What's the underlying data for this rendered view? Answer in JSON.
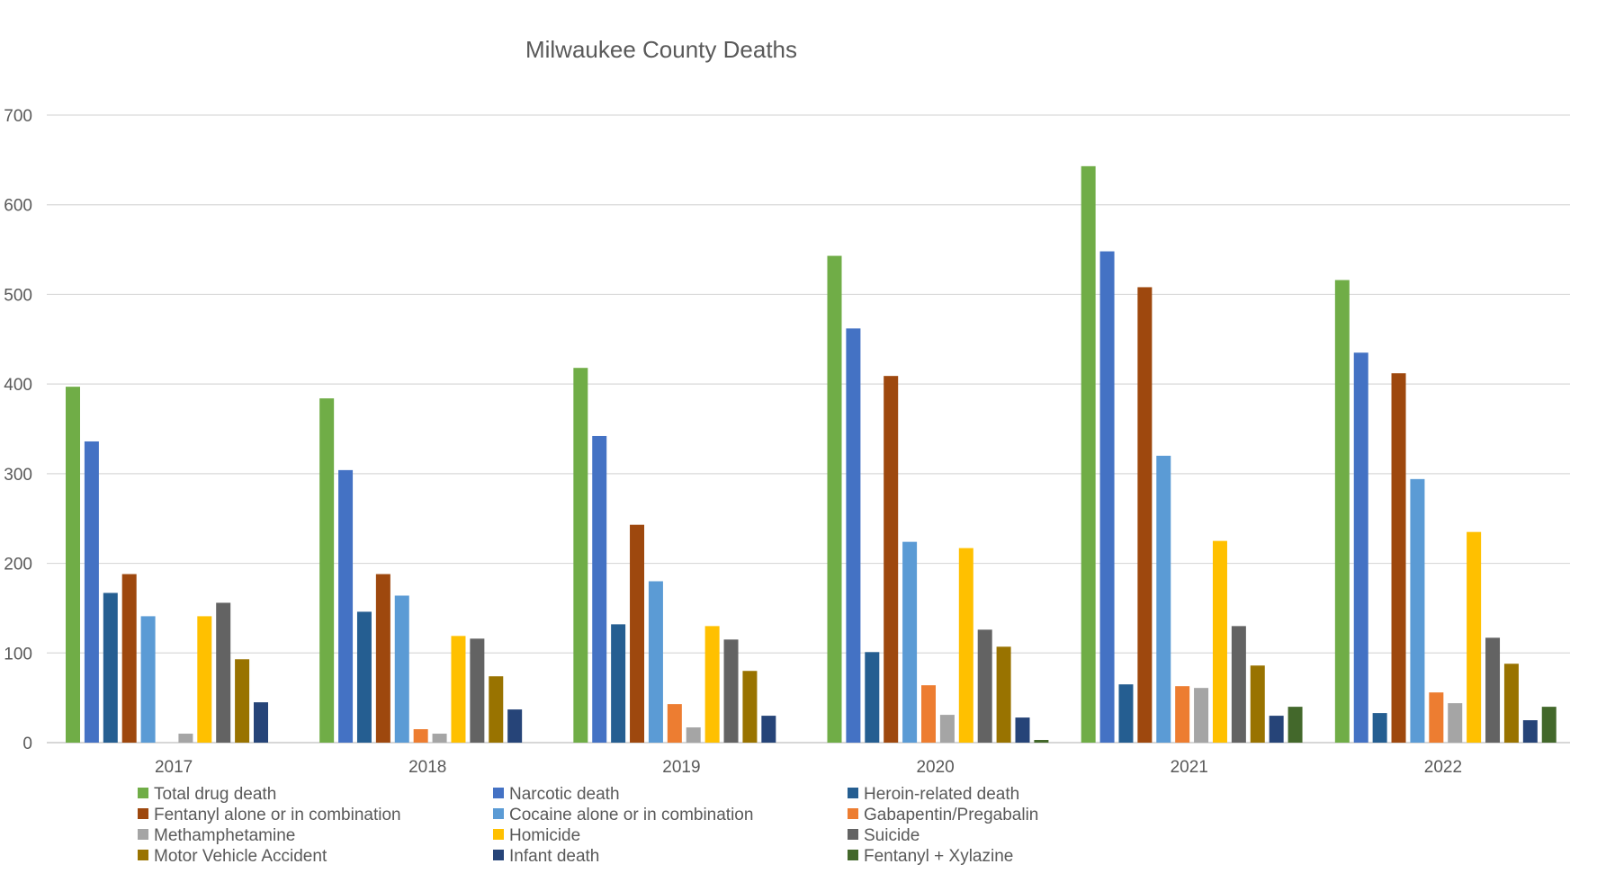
{
  "chart_data": {
    "type": "bar",
    "title": "Milwaukee County Deaths",
    "xlabel": "",
    "ylabel": "",
    "ylim": [
      0,
      700
    ],
    "yticks": [
      0,
      100,
      200,
      300,
      400,
      500,
      600,
      700
    ],
    "grid": true,
    "legend_position": "bottom",
    "categories": [
      "2017",
      "2018",
      "2019",
      "2020",
      "2021",
      "2022"
    ],
    "series": [
      {
        "name": "Total drug death",
        "color": "#70ad47",
        "values": [
          397,
          384,
          418,
          543,
          643,
          516
        ]
      },
      {
        "name": "Narcotic death",
        "color": "#4472c4",
        "values": [
          336,
          304,
          342,
          462,
          548,
          435
        ]
      },
      {
        "name": "Heroin-related death",
        "color": "#255e91",
        "values": [
          167,
          146,
          132,
          101,
          65,
          33
        ]
      },
      {
        "name": "Fentanyl alone or in combination",
        "color": "#9e480e",
        "values": [
          188,
          188,
          243,
          409,
          508,
          412
        ]
      },
      {
        "name": "Cocaine alone or in combination",
        "color": "#5b9bd5",
        "values": [
          141,
          164,
          180,
          224,
          320,
          294
        ]
      },
      {
        "name": "Gabapentin/Pregabalin",
        "color": "#ed7d31",
        "values": [
          null,
          15,
          43,
          64,
          63,
          56
        ]
      },
      {
        "name": "Methamphetamine",
        "color": "#a5a5a5",
        "values": [
          10,
          10,
          17,
          31,
          61,
          44
        ]
      },
      {
        "name": "Homicide",
        "color": "#ffc000",
        "values": [
          141,
          119,
          130,
          217,
          225,
          235
        ]
      },
      {
        "name": "Suicide",
        "color": "#636363",
        "values": [
          156,
          116,
          115,
          126,
          130,
          117
        ]
      },
      {
        "name": "Motor Vehicle Accident",
        "color": "#997300",
        "values": [
          93,
          74,
          80,
          107,
          86,
          88
        ]
      },
      {
        "name": "Infant death",
        "color": "#264478",
        "values": [
          45,
          37,
          30,
          28,
          30,
          25
        ]
      },
      {
        "name": "Fentanyl + Xylazine",
        "color": "#43682b",
        "values": [
          null,
          null,
          null,
          3,
          40,
          40
        ]
      }
    ]
  }
}
